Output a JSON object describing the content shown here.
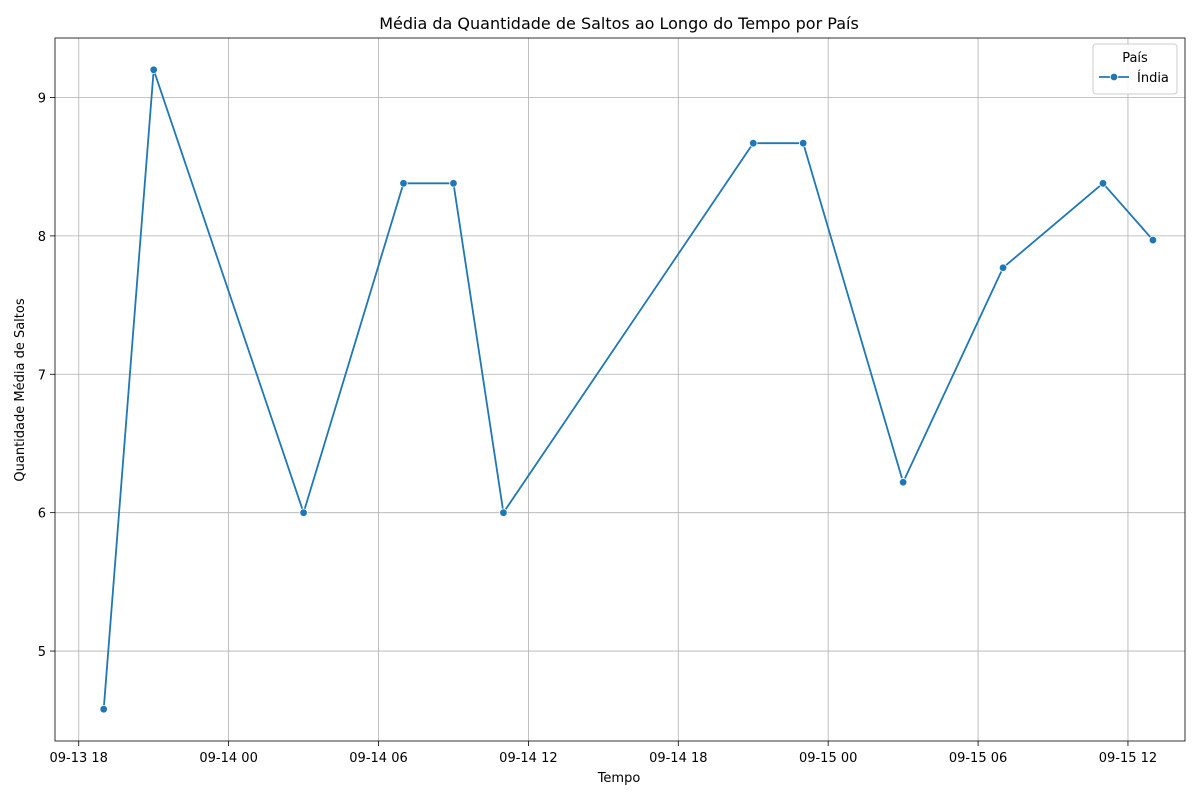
{
  "chart_data": {
    "type": "line",
    "title": "Média da Quantidade de Saltos ao Longo do Tempo por País",
    "xlabel": "Tempo",
    "ylabel": "Quantidade Média de Saltos",
    "x_tick_labels": [
      "09-13 18",
      "09-14 00",
      "09-14 06",
      "09-14 12",
      "09-14 18",
      "09-15 00",
      "09-15 06",
      "09-15 12"
    ],
    "y_tick_labels": [
      "5",
      "6",
      "7",
      "8",
      "9"
    ],
    "yticks": [
      5,
      6,
      7,
      8,
      9
    ],
    "ylim": [
      4.35,
      9.43
    ],
    "xlim": [
      "2023-09-13 17:03",
      "2023-09-15 14:17"
    ],
    "grid": true,
    "legend": {
      "title": "País",
      "placement": "top-right"
    },
    "series": [
      {
        "name": "Índia",
        "color": "#1f77b4",
        "marker": "circle",
        "x": [
          "2023-09-13 19:00",
          "2023-09-13 21:00",
          "2023-09-14 03:00",
          "2023-09-14 07:00",
          "2023-09-14 09:00",
          "2023-09-14 11:00",
          "2023-09-14 21:00",
          "2023-09-14 23:00",
          "2023-09-15 03:00",
          "2023-09-15 07:00",
          "2023-09-15 11:00",
          "2023-09-15 13:00"
        ],
        "values": [
          4.58,
          9.2,
          6.0,
          8.38,
          8.38,
          6.0,
          8.67,
          8.67,
          6.22,
          7.77,
          8.38,
          7.97
        ]
      }
    ]
  }
}
